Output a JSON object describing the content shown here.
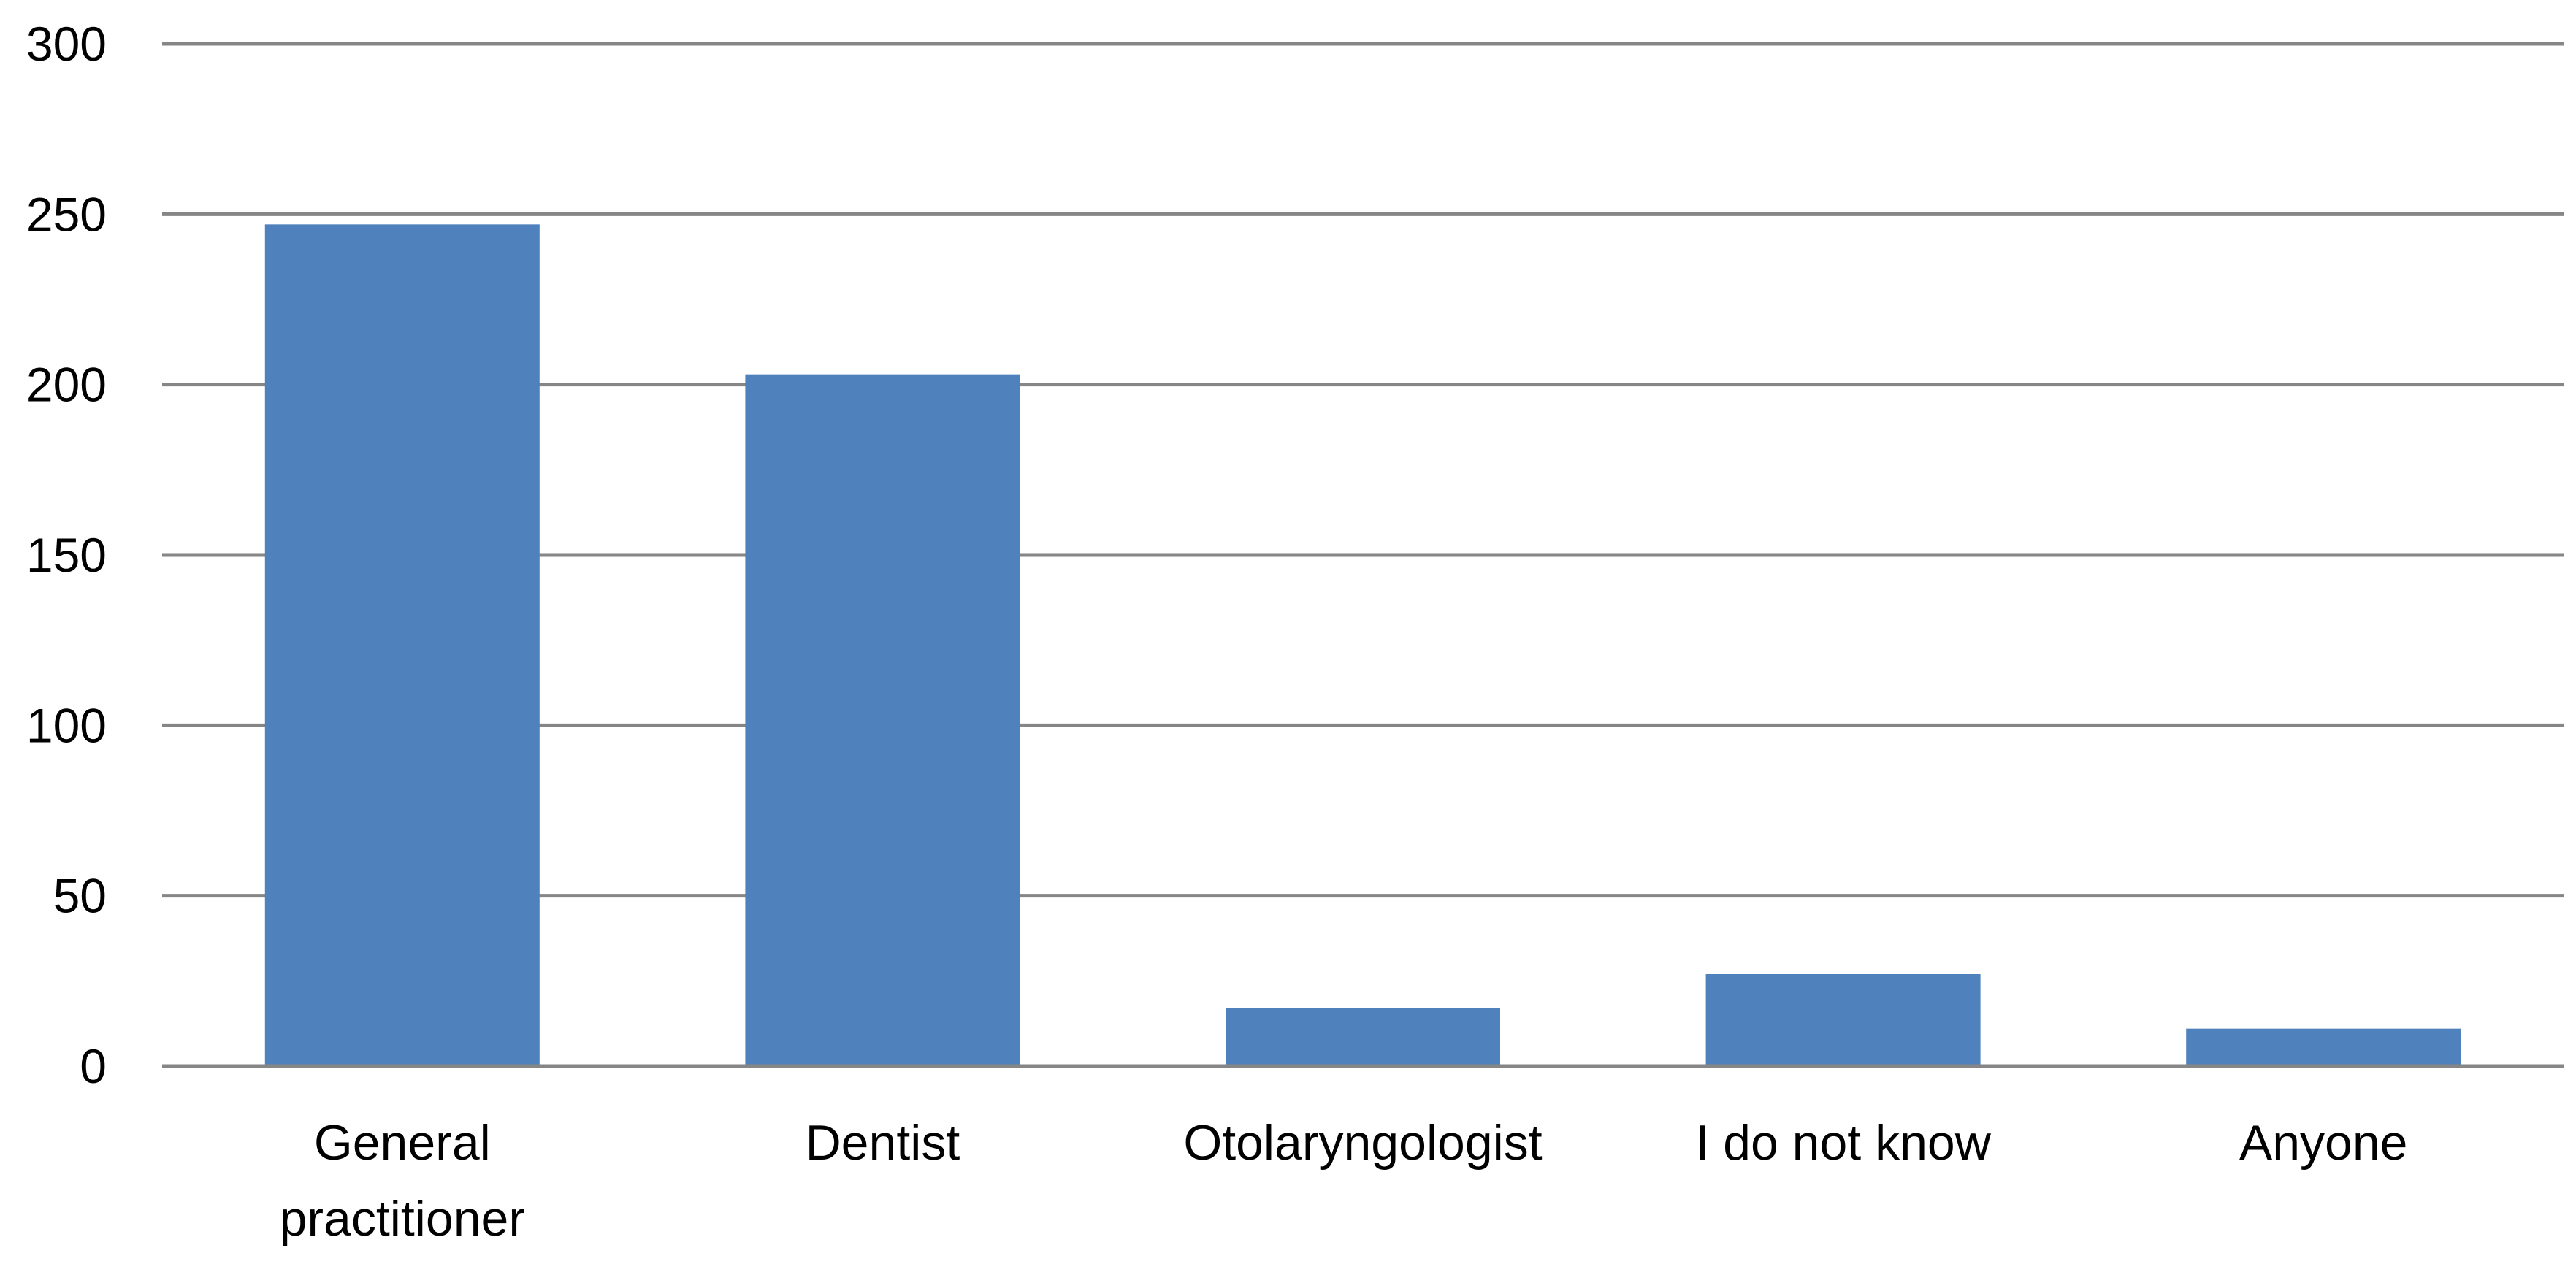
{
  "chart_data": {
    "type": "bar",
    "categories": [
      "General practitioner",
      "Dentist",
      "Otolaryngologist",
      "I do not know",
      "Anyone"
    ],
    "category_lines": [
      [
        "General",
        "practitioner"
      ],
      [
        "Dentist"
      ],
      [
        "Otolaryngologist"
      ],
      [
        "I do not know"
      ],
      [
        "Anyone"
      ]
    ],
    "values": [
      247,
      203,
      17,
      27,
      11
    ],
    "ylim": [
      0,
      300
    ],
    "yticks": [
      "0",
      "50",
      "100",
      "150",
      "200",
      "250",
      "300"
    ],
    "grid": true,
    "legend": "none",
    "bar_color": "#4F81BD",
    "grid_color": "#868686"
  }
}
